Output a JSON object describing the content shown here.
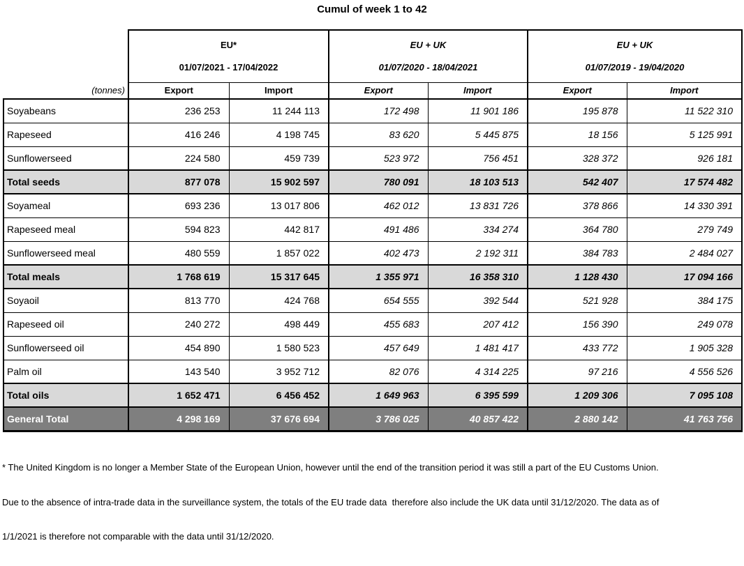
{
  "title": "Cumul of week 1 to 42",
  "colors": {
    "border": "#000000",
    "subtotal_bg": "#d9d9d9",
    "grandtotal_bg": "#7f7f7f",
    "grandtotal_text": "#ffffff"
  },
  "table": {
    "unit_label": "(tonnes)",
    "groups": [
      {
        "region": "EU*",
        "period": "01/07/2021 - 17/04/2022",
        "export_label": "Export",
        "import_label": "Import"
      },
      {
        "region": "EU + UK",
        "period": "01/07/2020 - 18/04/2021",
        "export_label": "Export",
        "import_label": "Import"
      },
      {
        "region": "EU + UK",
        "period": "01/07/2019 - 19/04/2020",
        "export_label": "Export",
        "import_label": "Import"
      }
    ],
    "rows": [
      {
        "label": "Soyabeans",
        "style": "data",
        "values": [
          "236 253",
          "11 244 113",
          "172 498",
          "11 901 186",
          "195 878",
          "11 522 310"
        ]
      },
      {
        "label": "Rapeseed",
        "style": "data",
        "values": [
          "416 246",
          "4 198 745",
          "83 620",
          "5 445 875",
          "18 156",
          "5 125 991"
        ]
      },
      {
        "label": "Sunflowerseed",
        "style": "data",
        "values": [
          "224 580",
          "459 739",
          "523 972",
          "756 451",
          "328 372",
          "926 181"
        ]
      },
      {
        "label": "Total seeds",
        "style": "subtotal",
        "values": [
          "877 078",
          "15 902 597",
          "780 091",
          "18 103 513",
          "542 407",
          "17 574 482"
        ]
      },
      {
        "label": "Soyameal",
        "style": "data",
        "values": [
          "693 236",
          "13 017 806",
          "462 012",
          "13 831 726",
          "378 866",
          "14 330 391"
        ]
      },
      {
        "label": "Rapeseed meal",
        "style": "data",
        "values": [
          "594 823",
          "442 817",
          "491 486",
          "334 274",
          "364 780",
          "279 749"
        ]
      },
      {
        "label": "Sunflowerseed meal",
        "style": "data",
        "values": [
          "480 559",
          "1 857 022",
          "402 473",
          "2 192 311",
          "384 783",
          "2 484 027"
        ]
      },
      {
        "label": "Total meals",
        "style": "subtotal",
        "values": [
          "1 768 619",
          "15 317 645",
          "1 355 971",
          "16 358 310",
          "1 128 430",
          "17 094 166"
        ]
      },
      {
        "label": "Soyaoil",
        "style": "data",
        "values": [
          "813 770",
          "424 768",
          "654 555",
          "392 544",
          "521 928",
          "384 175"
        ]
      },
      {
        "label": "Rapeseed oil",
        "style": "data",
        "values": [
          "240 272",
          "498 449",
          "455 683",
          "207 412",
          "156 390",
          "249 078"
        ]
      },
      {
        "label": "Sunflowerseed oil",
        "style": "data",
        "values": [
          "454 890",
          "1 580 523",
          "457 649",
          "1 481 417",
          "433 772",
          "1 905 328"
        ]
      },
      {
        "label": "Palm oil",
        "style": "data",
        "values": [
          "143 540",
          "3 952 712",
          "82 076",
          "4 314 225",
          "97 216",
          "4 556 526"
        ]
      },
      {
        "label": "Total oils",
        "style": "subtotal",
        "values": [
          "1 652 471",
          "6 456 452",
          "1 649 963",
          "6 395 599",
          "1 209 306",
          "7 095 108"
        ]
      },
      {
        "label": "General Total",
        "style": "grandtotal",
        "values": [
          "4 298 169",
          "37 676 694",
          "3 786 025",
          "40 857 422",
          "2 880 142",
          "41 763 756"
        ]
      }
    ]
  },
  "footnote": {
    "lines": [
      "* The United Kingdom is no longer a Member State of the European Union, however until the end of the transition period it was still a part of the EU Customs Union.",
      "Due to the absence of intra-trade data in the surveillance system, the totals of the EU trade data  therefore also include the UK data until 31/12/2020. The data as of",
      "1/1/2021 is therefore not comparable with the data until 31/12/2020."
    ]
  }
}
